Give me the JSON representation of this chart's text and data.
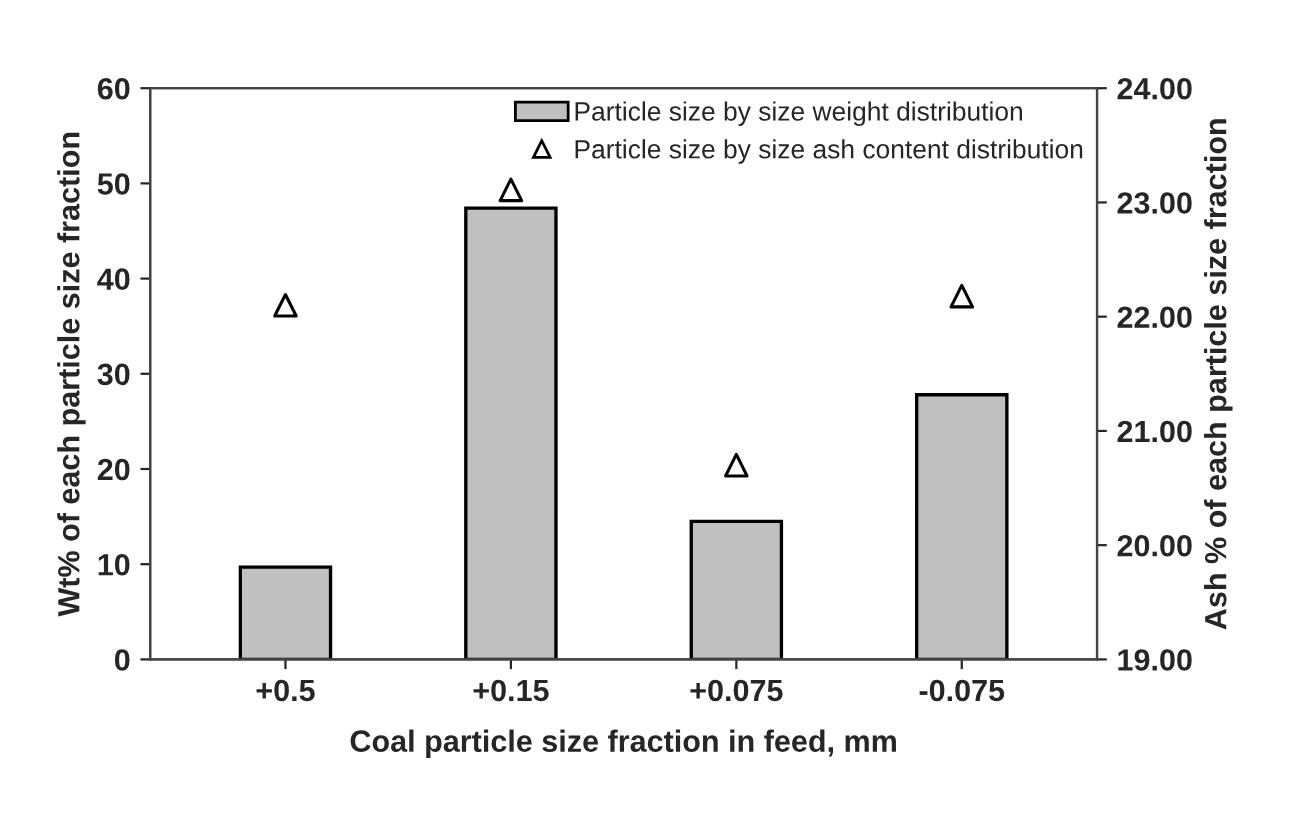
{
  "chart_data": {
    "type": "bar",
    "xlabel": "Coal particle size fraction in feed, mm",
    "ylabel": "Wt% of each particle size fraction",
    "y2label": "Ash % of each particle size fraction",
    "categories": [
      "+0.5",
      "+0.15",
      "+0.075",
      "-0.075"
    ],
    "series": [
      {
        "name": "Particle size by size weight distribution",
        "color": "#c0c0c0",
        "values": [
          9.7,
          47.4,
          14.5,
          27.8
        ]
      },
      {
        "name": "Particle size by size ash content distribution",
        "type": "scatter",
        "axis": "y2",
        "marker": "triangle",
        "color": "#ffffff",
        "values": [
          22.1,
          23.11,
          20.7,
          22.18
        ]
      }
    ],
    "ylim": [
      0,
      60
    ],
    "yticks": [
      0,
      10,
      20,
      30,
      40,
      50,
      60
    ],
    "y2lim": [
      19,
      24
    ],
    "y2ticks": [
      {
        "value": 19,
        "label": "19.00"
      },
      {
        "value": 20,
        "label": "20.00"
      },
      {
        "value": 21,
        "label": "21.00"
      },
      {
        "value": 22,
        "label": "22.00"
      },
      {
        "value": 23,
        "label": "23.00"
      },
      {
        "value": 24,
        "label": "24.00"
      }
    ],
    "grid": false,
    "legend": "top right"
  }
}
